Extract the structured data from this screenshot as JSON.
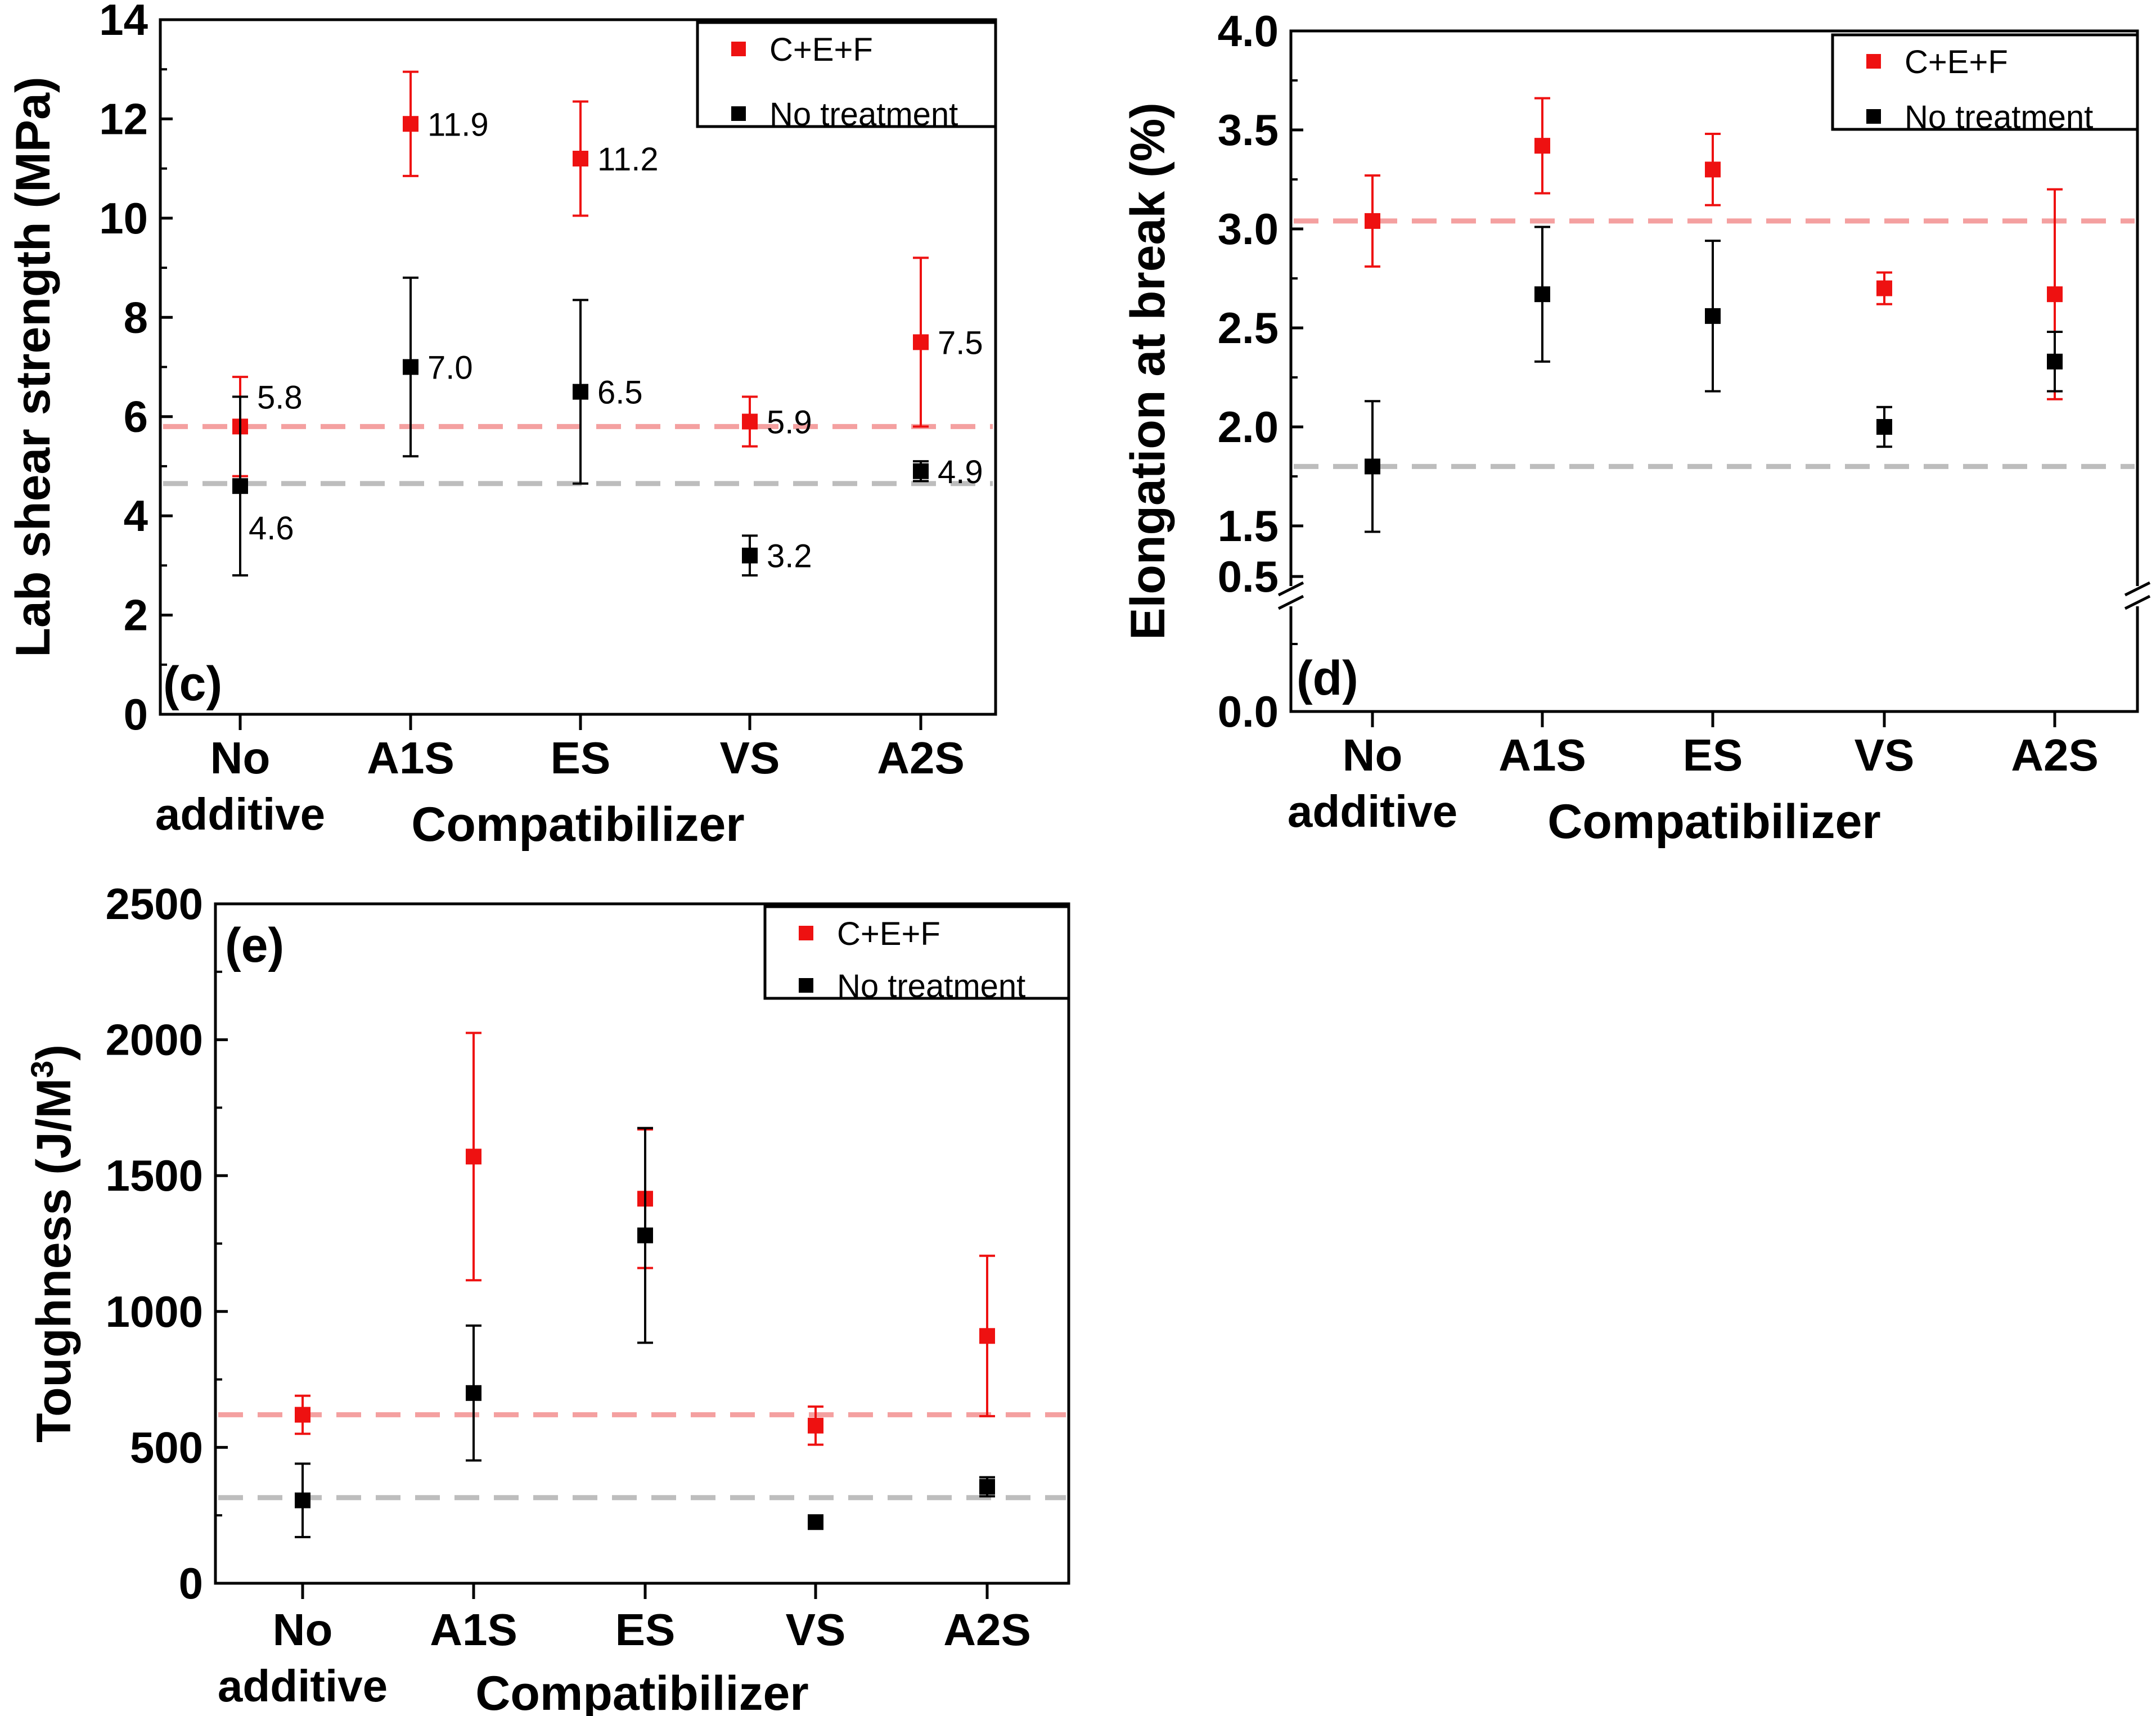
{
  "chart_data": [
    {
      "id": "c",
      "type": "scatter",
      "panel_label": "(c)",
      "xlabel": "Compatibilizer",
      "ylabel": "Lab shear strength (MPa)",
      "categories": [
        "No\nadditive",
        "A1S",
        "ES",
        "VS",
        "A2S"
      ],
      "ylim": [
        0,
        14
      ],
      "yticks": [
        "0",
        "2",
        "4",
        "6",
        "8",
        "10",
        "12",
        "14"
      ],
      "ytick_values": [
        0,
        2,
        4,
        6,
        8,
        10,
        12,
        14
      ],
      "legend_position": "top-right",
      "series": [
        {
          "name": "C+E+F",
          "color": "#ee1111",
          "values": [
            5.8,
            11.9,
            11.2,
            5.9,
            7.5
          ],
          "errors": [
            1.0,
            1.05,
            1.15,
            0.5,
            1.7
          ],
          "labels": [
            "5.8",
            "11.9",
            "11.2",
            "5.9",
            "7.5"
          ],
          "reference_line": 5.8,
          "reference_color": "#f4a0a0"
        },
        {
          "name": "No treatment",
          "color": "#000000",
          "values": [
            4.6,
            7.0,
            6.5,
            3.2,
            4.9
          ],
          "errors": [
            1.8,
            1.8,
            1.85,
            0.4,
            0.2
          ],
          "labels": [
            "4.6",
            "7.0",
            "6.5",
            "3.2",
            "4.9"
          ],
          "reference_line": 4.65,
          "reference_color": "#bdbdbd"
        }
      ]
    },
    {
      "id": "d",
      "type": "scatter",
      "panel_label": "(d)",
      "xlabel": "Compatibilizer",
      "ylabel": "Elongation at break (%)",
      "categories": [
        "No\nadditive",
        "A1S",
        "ES",
        "VS",
        "A2S"
      ],
      "axis_break": "between 0.5 and 1.5",
      "yticks": [
        "0.0",
        "0.5",
        "1.5",
        "2.0",
        "2.5",
        "3.0",
        "3.5",
        "4.0"
      ],
      "ytick_values": [
        0.0,
        0.5,
        1.5,
        2.0,
        2.5,
        3.0,
        3.5,
        4.0
      ],
      "legend_position": "top-right",
      "series": [
        {
          "name": "C+E+F",
          "color": "#ee1111",
          "values": [
            3.04,
            3.42,
            3.3,
            2.7,
            2.67
          ],
          "errors": [
            0.23,
            0.24,
            0.18,
            0.08,
            0.53
          ],
          "reference_line": 3.04,
          "reference_color": "#f4a0a0"
        },
        {
          "name": "No treatment",
          "color": "#000000",
          "values": [
            1.8,
            2.67,
            2.56,
            2.0,
            2.33
          ],
          "errors": [
            0.33,
            0.34,
            0.38,
            0.1,
            0.15
          ],
          "reference_line": 1.8,
          "reference_color": "#bdbdbd"
        }
      ]
    },
    {
      "id": "e",
      "type": "scatter",
      "panel_label": "(e)",
      "xlabel": "Compatibilizer",
      "ylabel": "Toughness (J/M",
      "ylabel_sup": "3",
      "ylabel_end": ")",
      "categories": [
        "No\nadditive",
        "A1S",
        "ES",
        "VS",
        "A2S"
      ],
      "ylim": [
        0,
        2500
      ],
      "yticks": [
        "0",
        "500",
        "1000",
        "1500",
        "2000",
        "2500"
      ],
      "ytick_values": [
        0,
        500,
        1000,
        1500,
        2000,
        2500
      ],
      "legend_position": "top-right",
      "series": [
        {
          "name": "C+E+F",
          "color": "#ee1111",
          "values": [
            620,
            1570,
            1415,
            580,
            910
          ],
          "errors": [
            70,
            455,
            255,
            70,
            295
          ],
          "reference_line": 620,
          "reference_color": "#f4a0a0"
        },
        {
          "name": "No treatment",
          "color": "#000000",
          "values": [
            305,
            700,
            1280,
            225,
            355
          ],
          "errors": [
            135,
            248,
            395,
            0,
            35
          ],
          "reference_line": 315,
          "reference_color": "#bdbdbd"
        }
      ]
    }
  ]
}
